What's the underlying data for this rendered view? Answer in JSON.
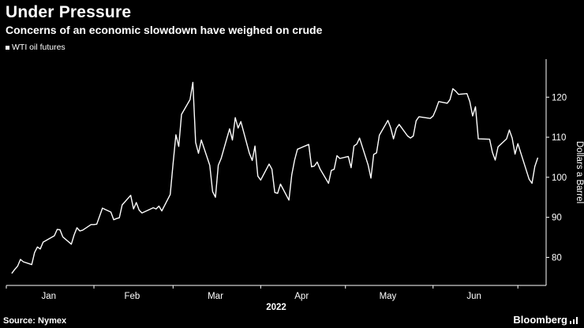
{
  "header": {
    "title": "Under Pressure",
    "subtitle": "Concerns of an economic slowdown have weighed on crude"
  },
  "legend": {
    "label": "WTI oil futures",
    "marker_color": "#ffffff"
  },
  "footer": {
    "source": "Source: Nymex",
    "brand": "Bloomberg"
  },
  "colors": {
    "background": "#000000",
    "text": "#ffffff",
    "line": "#ffffff",
    "axis": "#ffffff"
  },
  "chart_data": {
    "type": "line",
    "title": "Under Pressure",
    "subtitle": "Concerns of an economic slowdown have weighed on crude",
    "series_name": "WTI oil futures",
    "ylabel": "Dollars a Barrel",
    "x_year": "2022",
    "ylim": [
      73,
      129.5
    ],
    "xlim": [
      1,
      192
    ],
    "yticks": [
      80,
      90,
      100,
      110,
      120
    ],
    "month_tick_days": [
      1,
      32,
      60,
      91,
      121,
      152,
      182
    ],
    "months": [
      {
        "label": "Jan",
        "day": 16
      },
      {
        "label": "Feb",
        "day": 45.5
      },
      {
        "label": "Mar",
        "day": 75
      },
      {
        "label": "Apr",
        "day": 105.5
      },
      {
        "label": "May",
        "day": 136
      },
      {
        "label": "Jun",
        "day": 166.5
      }
    ],
    "x": [
      3,
      4,
      5,
      6,
      7,
      10,
      11,
      12,
      13,
      14,
      18,
      19,
      20,
      21,
      24,
      25,
      26,
      27,
      28,
      31,
      32,
      33,
      34,
      35,
      38,
      39,
      40,
      41,
      42,
      45,
      46,
      47,
      48,
      49,
      53,
      54,
      55,
      56,
      59,
      60,
      61,
      62,
      63,
      66,
      67,
      68,
      69,
      70,
      73,
      74,
      75,
      76,
      77,
      80,
      81,
      82,
      83,
      84,
      87,
      88,
      89,
      90,
      91,
      94,
      95,
      96,
      97,
      98,
      101,
      102,
      103,
      104,
      108,
      109,
      110,
      111,
      112,
      115,
      116,
      117,
      118,
      119,
      122,
      123,
      124,
      125,
      126,
      129,
      130,
      131,
      132,
      133,
      136,
      137,
      138,
      139,
      140,
      143,
      144,
      145,
      146,
      147,
      151,
      152,
      153,
      154,
      157,
      158,
      159,
      160,
      161,
      164,
      165,
      166,
      167,
      168,
      172,
      173,
      174,
      175,
      178,
      179,
      180,
      181,
      182,
      186,
      187,
      188,
      189
    ],
    "values": [
      76.1,
      77.0,
      77.8,
      79.5,
      78.9,
      78.2,
      81.2,
      82.6,
      82.1,
      83.8,
      85.4,
      87.0,
      86.9,
      85.1,
      83.3,
      85.6,
      87.4,
      86.6,
      86.8,
      88.2,
      88.2,
      88.3,
      90.3,
      92.3,
      91.3,
      89.4,
      89.7,
      89.9,
      93.1,
      95.5,
      92.1,
      93.7,
      91.8,
      91.1,
      92.4,
      92.1,
      92.8,
      91.6,
      95.7,
      103.4,
      110.6,
      107.7,
      115.7,
      119.4,
      123.7,
      108.7,
      106.0,
      109.3,
      103.0,
      96.4,
      95.0,
      103.0,
      104.7,
      112.1,
      109.3,
      114.9,
      112.3,
      113.9,
      106.0,
      104.2,
      107.8,
      100.3,
      99.3,
      103.3,
      102.0,
      96.2,
      96.0,
      98.3,
      94.3,
      100.6,
      104.3,
      107.0,
      108.2,
      102.6,
      102.8,
      103.8,
      102.1,
      98.5,
      101.7,
      102.0,
      105.4,
      104.7,
      105.2,
      102.4,
      107.8,
      108.3,
      109.8,
      103.1,
      99.8,
      105.7,
      106.1,
      110.5,
      114.2,
      112.4,
      109.6,
      112.2,
      113.2,
      110.3,
      109.8,
      110.3,
      114.1,
      115.1,
      114.7,
      115.3,
      116.9,
      118.9,
      118.5,
      119.4,
      122.1,
      121.5,
      120.7,
      120.9,
      118.9,
      115.3,
      117.6,
      109.6,
      109.5,
      106.2,
      104.3,
      107.6,
      109.6,
      111.8,
      109.8,
      105.8,
      108.4,
      99.5,
      98.5,
      102.7,
      104.8
    ]
  }
}
